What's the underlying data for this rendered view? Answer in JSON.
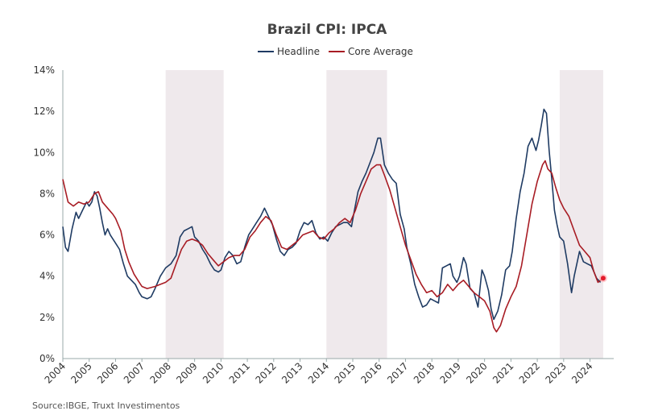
{
  "chart_data": {
    "type": "line",
    "title": "Brazil CPI: IPCA",
    "source": "Source:IBGE, Truxt Investimentos",
    "xlim": [
      2004,
      2024.9
    ],
    "ylim": [
      0,
      14
    ],
    "y_ticks": [
      0,
      2,
      4,
      6,
      8,
      10,
      12,
      14
    ],
    "y_tick_labels": [
      "0%",
      "2%",
      "4%",
      "6%",
      "8%",
      "10%",
      "12%",
      "14%"
    ],
    "x_ticks": [
      2004,
      2005,
      2006,
      2007,
      2008,
      2009,
      2010,
      2011,
      2012,
      2013,
      2014,
      2015,
      2016,
      2017,
      2018,
      2019,
      2020,
      2021,
      2022,
      2023,
      2024
    ],
    "x_tick_labels": [
      "2004",
      "2005",
      "2006",
      "2007",
      "2008",
      "2009",
      "2010",
      "2011",
      "2012",
      "2013",
      "2014",
      "2015",
      "2016",
      "2017",
      "2018",
      "2019",
      "2020",
      "2021",
      "2022",
      "2023",
      "2024"
    ],
    "legend_position": "top-center",
    "grid": false,
    "shaded_periods": [
      [
        2007.9,
        2010.1
      ],
      [
        2014.0,
        2016.3
      ],
      [
        2022.85,
        2024.5
      ]
    ],
    "series": [
      {
        "name": "Headline",
        "color": "#1f3b63",
        "points": [
          [
            2004.0,
            6.4
          ],
          [
            2004.1,
            5.4
          ],
          [
            2004.2,
            5.2
          ],
          [
            2004.35,
            6.3
          ],
          [
            2004.5,
            7.1
          ],
          [
            2004.6,
            6.8
          ],
          [
            2004.75,
            7.2
          ],
          [
            2004.9,
            7.6
          ],
          [
            2005.0,
            7.4
          ],
          [
            2005.1,
            7.6
          ],
          [
            2005.2,
            8.1
          ],
          [
            2005.3,
            7.9
          ],
          [
            2005.4,
            7.3
          ],
          [
            2005.5,
            6.6
          ],
          [
            2005.6,
            6.0
          ],
          [
            2005.7,
            6.3
          ],
          [
            2005.8,
            6.0
          ],
          [
            2005.9,
            5.8
          ],
          [
            2006.0,
            5.6
          ],
          [
            2006.15,
            5.3
          ],
          [
            2006.3,
            4.6
          ],
          [
            2006.45,
            4.0
          ],
          [
            2006.6,
            3.8
          ],
          [
            2006.75,
            3.6
          ],
          [
            2006.9,
            3.2
          ],
          [
            2007.0,
            3.0
          ],
          [
            2007.2,
            2.9
          ],
          [
            2007.35,
            3.0
          ],
          [
            2007.5,
            3.4
          ],
          [
            2007.7,
            4.0
          ],
          [
            2007.9,
            4.4
          ],
          [
            2008.1,
            4.6
          ],
          [
            2008.3,
            5.0
          ],
          [
            2008.45,
            5.9
          ],
          [
            2008.6,
            6.2
          ],
          [
            2008.75,
            6.3
          ],
          [
            2008.9,
            6.4
          ],
          [
            2009.0,
            5.9
          ],
          [
            2009.15,
            5.7
          ],
          [
            2009.3,
            5.3
          ],
          [
            2009.45,
            5.0
          ],
          [
            2009.6,
            4.6
          ],
          [
            2009.75,
            4.3
          ],
          [
            2009.9,
            4.2
          ],
          [
            2010.0,
            4.3
          ],
          [
            2010.15,
            4.9
          ],
          [
            2010.3,
            5.2
          ],
          [
            2010.45,
            5.0
          ],
          [
            2010.6,
            4.6
          ],
          [
            2010.75,
            4.7
          ],
          [
            2010.9,
            5.4
          ],
          [
            2011.05,
            6.0
          ],
          [
            2011.2,
            6.3
          ],
          [
            2011.35,
            6.6
          ],
          [
            2011.5,
            6.9
          ],
          [
            2011.65,
            7.3
          ],
          [
            2011.8,
            6.9
          ],
          [
            2011.95,
            6.5
          ],
          [
            2012.1,
            5.8
          ],
          [
            2012.25,
            5.2
          ],
          [
            2012.4,
            5.0
          ],
          [
            2012.55,
            5.3
          ],
          [
            2012.7,
            5.4
          ],
          [
            2012.85,
            5.6
          ],
          [
            2013.0,
            6.2
          ],
          [
            2013.15,
            6.6
          ],
          [
            2013.3,
            6.5
          ],
          [
            2013.45,
            6.7
          ],
          [
            2013.6,
            6.1
          ],
          [
            2013.75,
            5.8
          ],
          [
            2013.9,
            5.9
          ],
          [
            2014.05,
            5.7
          ],
          [
            2014.2,
            6.1
          ],
          [
            2014.35,
            6.4
          ],
          [
            2014.5,
            6.5
          ],
          [
            2014.65,
            6.6
          ],
          [
            2014.8,
            6.6
          ],
          [
            2014.95,
            6.4
          ],
          [
            2015.05,
            7.1
          ],
          [
            2015.2,
            8.1
          ],
          [
            2015.35,
            8.6
          ],
          [
            2015.5,
            9.0
          ],
          [
            2015.65,
            9.5
          ],
          [
            2015.8,
            10.0
          ],
          [
            2015.95,
            10.7
          ],
          [
            2016.05,
            10.7
          ],
          [
            2016.2,
            9.4
          ],
          [
            2016.35,
            9.0
          ],
          [
            2016.5,
            8.7
          ],
          [
            2016.65,
            8.5
          ],
          [
            2016.8,
            7.0
          ],
          [
            2016.95,
            6.3
          ],
          [
            2017.05,
            5.4
          ],
          [
            2017.2,
            4.6
          ],
          [
            2017.35,
            3.6
          ],
          [
            2017.5,
            3.0
          ],
          [
            2017.65,
            2.5
          ],
          [
            2017.8,
            2.6
          ],
          [
            2017.95,
            2.9
          ],
          [
            2018.1,
            2.8
          ],
          [
            2018.25,
            2.7
          ],
          [
            2018.4,
            4.4
          ],
          [
            2018.55,
            4.5
          ],
          [
            2018.7,
            4.6
          ],
          [
            2018.8,
            4.0
          ],
          [
            2018.95,
            3.7
          ],
          [
            2019.05,
            4.0
          ],
          [
            2019.2,
            4.9
          ],
          [
            2019.3,
            4.6
          ],
          [
            2019.45,
            3.4
          ],
          [
            2019.6,
            3.2
          ],
          [
            2019.75,
            2.5
          ],
          [
            2019.9,
            4.3
          ],
          [
            2020.0,
            4.0
          ],
          [
            2020.15,
            3.3
          ],
          [
            2020.25,
            2.4
          ],
          [
            2020.35,
            1.9
          ],
          [
            2020.5,
            2.3
          ],
          [
            2020.65,
            3.1
          ],
          [
            2020.8,
            4.3
          ],
          [
            2020.95,
            4.5
          ],
          [
            2021.05,
            5.2
          ],
          [
            2021.2,
            6.8
          ],
          [
            2021.35,
            8.1
          ],
          [
            2021.5,
            9.0
          ],
          [
            2021.65,
            10.3
          ],
          [
            2021.8,
            10.7
          ],
          [
            2021.95,
            10.1
          ],
          [
            2022.05,
            10.6
          ],
          [
            2022.15,
            11.3
          ],
          [
            2022.25,
            12.1
          ],
          [
            2022.35,
            11.9
          ],
          [
            2022.45,
            10.1
          ],
          [
            2022.55,
            8.7
          ],
          [
            2022.65,
            7.2
          ],
          [
            2022.75,
            6.5
          ],
          [
            2022.85,
            5.9
          ],
          [
            2023.0,
            5.7
          ],
          [
            2023.15,
            4.6
          ],
          [
            2023.3,
            3.2
          ],
          [
            2023.4,
            4.0
          ],
          [
            2023.5,
            4.6
          ],
          [
            2023.6,
            5.2
          ],
          [
            2023.75,
            4.7
          ],
          [
            2023.9,
            4.6
          ],
          [
            2024.05,
            4.5
          ],
          [
            2024.15,
            4.2
          ],
          [
            2024.25,
            3.9
          ],
          [
            2024.4,
            3.7
          ]
        ]
      },
      {
        "name": "Core Average",
        "color": "#a81c24",
        "points": [
          [
            2004.0,
            8.7
          ],
          [
            2004.2,
            7.6
          ],
          [
            2004.4,
            7.4
          ],
          [
            2004.6,
            7.6
          ],
          [
            2004.8,
            7.5
          ],
          [
            2005.0,
            7.6
          ],
          [
            2005.2,
            8.0
          ],
          [
            2005.35,
            8.1
          ],
          [
            2005.5,
            7.6
          ],
          [
            2005.7,
            7.3
          ],
          [
            2005.9,
            7.0
          ],
          [
            2006.0,
            6.8
          ],
          [
            2006.2,
            6.2
          ],
          [
            2006.35,
            5.3
          ],
          [
            2006.5,
            4.7
          ],
          [
            2006.7,
            4.1
          ],
          [
            2006.9,
            3.7
          ],
          [
            2007.0,
            3.5
          ],
          [
            2007.2,
            3.4
          ],
          [
            2007.5,
            3.5
          ],
          [
            2007.7,
            3.6
          ],
          [
            2007.9,
            3.7
          ],
          [
            2008.1,
            3.9
          ],
          [
            2008.3,
            4.6
          ],
          [
            2008.5,
            5.3
          ],
          [
            2008.7,
            5.7
          ],
          [
            2008.9,
            5.8
          ],
          [
            2009.1,
            5.7
          ],
          [
            2009.3,
            5.5
          ],
          [
            2009.5,
            5.1
          ],
          [
            2009.7,
            4.8
          ],
          [
            2009.9,
            4.5
          ],
          [
            2010.1,
            4.7
          ],
          [
            2010.3,
            4.9
          ],
          [
            2010.5,
            5.0
          ],
          [
            2010.7,
            5.0
          ],
          [
            2010.9,
            5.3
          ],
          [
            2011.1,
            5.9
          ],
          [
            2011.3,
            6.2
          ],
          [
            2011.5,
            6.6
          ],
          [
            2011.7,
            6.9
          ],
          [
            2011.9,
            6.7
          ],
          [
            2012.1,
            6.0
          ],
          [
            2012.3,
            5.4
          ],
          [
            2012.5,
            5.3
          ],
          [
            2012.7,
            5.5
          ],
          [
            2012.9,
            5.7
          ],
          [
            2013.1,
            6.0
          ],
          [
            2013.3,
            6.1
          ],
          [
            2013.5,
            6.2
          ],
          [
            2013.7,
            5.9
          ],
          [
            2013.9,
            5.8
          ],
          [
            2014.1,
            6.1
          ],
          [
            2014.3,
            6.3
          ],
          [
            2014.5,
            6.6
          ],
          [
            2014.7,
            6.8
          ],
          [
            2014.9,
            6.6
          ],
          [
            2015.1,
            7.2
          ],
          [
            2015.3,
            8.0
          ],
          [
            2015.5,
            8.6
          ],
          [
            2015.7,
            9.2
          ],
          [
            2015.9,
            9.4
          ],
          [
            2016.05,
            9.4
          ],
          [
            2016.2,
            8.9
          ],
          [
            2016.4,
            8.2
          ],
          [
            2016.6,
            7.3
          ],
          [
            2016.8,
            6.4
          ],
          [
            2017.0,
            5.5
          ],
          [
            2017.2,
            4.8
          ],
          [
            2017.4,
            4.1
          ],
          [
            2017.6,
            3.6
          ],
          [
            2017.8,
            3.2
          ],
          [
            2018.0,
            3.3
          ],
          [
            2018.2,
            3.0
          ],
          [
            2018.4,
            3.2
          ],
          [
            2018.6,
            3.6
          ],
          [
            2018.8,
            3.3
          ],
          [
            2019.0,
            3.6
          ],
          [
            2019.2,
            3.8
          ],
          [
            2019.4,
            3.5
          ],
          [
            2019.6,
            3.2
          ],
          [
            2019.8,
            3.0
          ],
          [
            2020.0,
            2.8
          ],
          [
            2020.2,
            2.3
          ],
          [
            2020.35,
            1.5
          ],
          [
            2020.45,
            1.3
          ],
          [
            2020.6,
            1.6
          ],
          [
            2020.8,
            2.4
          ],
          [
            2021.0,
            3.0
          ],
          [
            2021.2,
            3.5
          ],
          [
            2021.4,
            4.5
          ],
          [
            2021.6,
            6.0
          ],
          [
            2021.8,
            7.5
          ],
          [
            2022.0,
            8.6
          ],
          [
            2022.2,
            9.4
          ],
          [
            2022.3,
            9.6
          ],
          [
            2022.4,
            9.2
          ],
          [
            2022.55,
            9.0
          ],
          [
            2022.7,
            8.3
          ],
          [
            2022.85,
            7.7
          ],
          [
            2023.0,
            7.3
          ],
          [
            2023.2,
            6.9
          ],
          [
            2023.4,
            6.2
          ],
          [
            2023.6,
            5.5
          ],
          [
            2023.8,
            5.2
          ],
          [
            2024.0,
            4.9
          ],
          [
            2024.15,
            4.2
          ],
          [
            2024.3,
            3.7
          ],
          [
            2024.5,
            3.9
          ]
        ]
      }
    ]
  }
}
